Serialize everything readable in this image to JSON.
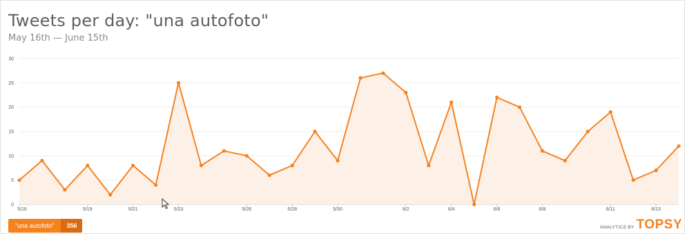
{
  "title": "Tweets per day: \"una autofoto\"",
  "subtitle": "May 16th — June 15th",
  "legend": {
    "label": "\"una autofoto\"",
    "count": "356"
  },
  "brand": {
    "by": "ANALYTICS BY",
    "name": "TOPSY"
  },
  "colors": {
    "line": "#f58220",
    "fill": "#fdeee4",
    "grid": "#eeeeee",
    "text": "#555555"
  },
  "icons": {
    "cursor": "mouse-pointer-icon"
  },
  "chart_data": {
    "type": "area",
    "title": "Tweets per day: \"una autofoto\"",
    "subtitle": "May 16th — June 15th",
    "ylim": [
      0,
      30
    ],
    "yticks": [
      0,
      5,
      10,
      15,
      20,
      25,
      30
    ],
    "xticks": [
      "5/16",
      "5/19",
      "5/21",
      "5/23",
      "5/26",
      "5/28",
      "5/30",
      "6/2",
      "6/4",
      "6/6",
      "6/8",
      "6/11",
      "6/13"
    ],
    "grid": true,
    "x": [
      "5/16",
      "5/17",
      "5/18",
      "5/19",
      "5/20",
      "5/21",
      "5/22",
      "5/23",
      "5/24",
      "5/25",
      "5/26",
      "5/27",
      "5/28",
      "5/29",
      "5/30",
      "5/31",
      "6/1",
      "6/2",
      "6/3",
      "6/4",
      "6/5",
      "6/6",
      "6/7",
      "6/8",
      "6/9",
      "6/10",
      "6/11",
      "6/12",
      "6/13",
      "6/14"
    ],
    "series": [
      {
        "name": "\"una autofoto\"",
        "values": [
          5,
          9,
          3,
          8,
          2,
          8,
          4,
          25,
          8,
          11,
          10,
          6,
          8,
          15,
          9,
          26,
          27,
          23,
          8,
          21,
          0,
          22,
          20,
          11,
          9,
          15,
          19,
          5,
          7,
          12
        ]
      }
    ]
  }
}
